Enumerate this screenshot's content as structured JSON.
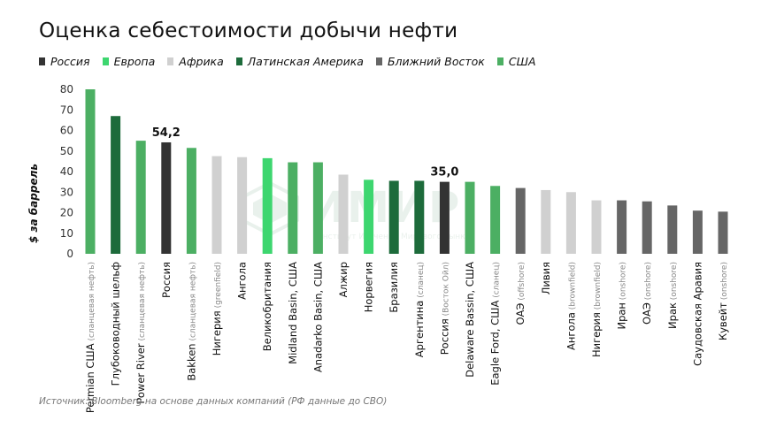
{
  "title": "Оценка себестоимости добычи нефти",
  "legend": [
    {
      "label": "Россия",
      "color": "#333333"
    },
    {
      "label": "Европа",
      "color": "#3dd66f"
    },
    {
      "label": "Африка",
      "color": "#d0d0d0"
    },
    {
      "label": "Латинская Америка",
      "color": "#1d6b3b"
    },
    {
      "label": "Ближний Восток",
      "color": "#666666"
    },
    {
      "label": "США",
      "color": "#4caf63"
    }
  ],
  "watermark": {
    "main": "ИМИР",
    "sub": "Институт Изучения Мирового Рынка"
  },
  "source": "Источник: Bloomberg на основе данных компаний (РФ данные до СВО)",
  "chart_data": {
    "type": "bar",
    "ylabel": "$ за баррель",
    "ylim": [
      0,
      80
    ],
    "yticks": [
      0,
      10,
      20,
      30,
      40,
      50,
      60,
      70,
      80
    ],
    "grid": false,
    "legend_position": "top",
    "series": [
      {
        "name": "Россия",
        "color": "#333333"
      },
      {
        "name": "Европа",
        "color": "#3dd66f"
      },
      {
        "name": "Африка",
        "color": "#d0d0d0"
      },
      {
        "name": "Латинская Америка",
        "color": "#1d6b3b"
      },
      {
        "name": "Ближний Восток",
        "color": "#666666"
      },
      {
        "name": "США",
        "color": "#4caf63"
      }
    ],
    "bars": [
      {
        "main": "Permian США",
        "sub": "(сланцевая нефть)",
        "value": 80,
        "color": "#4caf63"
      },
      {
        "main": "Глубоководный шельф",
        "sub": "",
        "value": 67,
        "color": "#1d6b3b"
      },
      {
        "main": "Power River",
        "sub": "(сланцевая нефть)",
        "value": 55,
        "color": "#4caf63"
      },
      {
        "main": "Россия",
        "sub": "",
        "value": 54.2,
        "color": "#333333",
        "label": "54,2"
      },
      {
        "main": "Bakken",
        "sub": "(сланцевая нефть)",
        "value": 51.5,
        "color": "#4caf63"
      },
      {
        "main": "Нигерия",
        "sub": "(greenfield)",
        "value": 47.5,
        "color": "#d0d0d0"
      },
      {
        "main": "Ангола",
        "sub": "",
        "value": 47,
        "color": "#d0d0d0"
      },
      {
        "main": "Великобритания",
        "sub": "",
        "value": 46.5,
        "color": "#3dd66f"
      },
      {
        "main": "Midland Basin, США",
        "sub": "",
        "value": 44.5,
        "color": "#4caf63"
      },
      {
        "main": "Anadarko Basin, США",
        "sub": "",
        "value": 44.5,
        "color": "#4caf63"
      },
      {
        "main": "Алжир",
        "sub": "",
        "value": 38.5,
        "color": "#d0d0d0"
      },
      {
        "main": "Норвегия",
        "sub": "",
        "value": 36,
        "color": "#3dd66f"
      },
      {
        "main": "Бразилия",
        "sub": "",
        "value": 35.5,
        "color": "#1d6b3b"
      },
      {
        "main": "Аргентина",
        "sub": "(сланец)",
        "value": 35.5,
        "color": "#1d6b3b"
      },
      {
        "main": "Россия",
        "sub": "(Восток Ойл)",
        "value": 35,
        "color": "#333333",
        "label": "35,0"
      },
      {
        "main": "Delaware Bassin, США",
        "sub": "",
        "value": 35,
        "color": "#4caf63"
      },
      {
        "main": "Eagle Ford, США",
        "sub": "(сланец)",
        "value": 33,
        "color": "#4caf63"
      },
      {
        "main": "ОАЭ",
        "sub": "(offshore)",
        "value": 32,
        "color": "#666666"
      },
      {
        "main": "Ливия",
        "sub": "",
        "value": 31,
        "color": "#d0d0d0"
      },
      {
        "main": "Ангола",
        "sub": "(brownfield)",
        "value": 30,
        "color": "#d0d0d0"
      },
      {
        "main": "Нигерия",
        "sub": "(brownfield)",
        "value": 26,
        "color": "#d0d0d0"
      },
      {
        "main": "Иран",
        "sub": "(onshore)",
        "value": 26,
        "color": "#666666"
      },
      {
        "main": "ОАЭ",
        "sub": "(onshore)",
        "value": 25.5,
        "color": "#666666"
      },
      {
        "main": "Ирак",
        "sub": "(onshore)",
        "value": 23.5,
        "color": "#666666"
      },
      {
        "main": "Саудовская Аравия",
        "sub": "",
        "value": 21,
        "color": "#666666"
      },
      {
        "main": "Кувейт",
        "sub": "(onshore)",
        "value": 20.5,
        "color": "#666666"
      }
    ]
  }
}
